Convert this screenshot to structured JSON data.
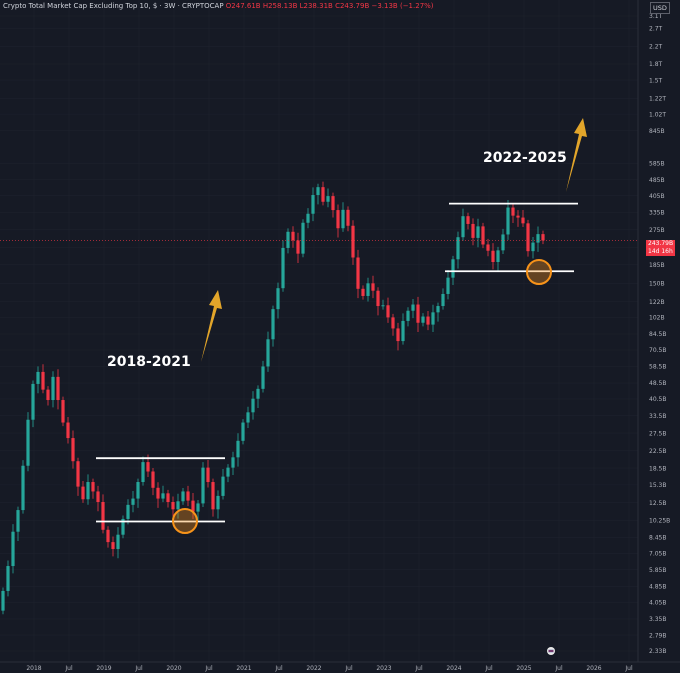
{
  "header": {
    "name": "Crypto Total Market Cap Excluding Top 10, $ · 3W · CRYPTOCAP",
    "open": "O247.61B",
    "high": "H258.13B",
    "low": "L238.31B",
    "close": "C243.79B",
    "change": "−3.13B (−1.27%)"
  },
  "currency": "USD",
  "last_price": {
    "value": "243.79B",
    "countdown": "14d 16h"
  },
  "colors": {
    "background": "#161a25",
    "up": "#26a69a",
    "down": "#f23645",
    "level": "#ffffff",
    "arrow": "#e2a52a",
    "circle": "#f7931a"
  },
  "annotations": [
    {
      "text": "2018-2021"
    },
    {
      "text": "2022-2025"
    }
  ],
  "chart_data": {
    "type": "candlestick",
    "y_scale": "log",
    "ylim": [
      "2.2B",
      "3.5T"
    ],
    "x_tick_labels": [
      "2018",
      "Jul",
      "2019",
      "Jul",
      "2020",
      "Jul",
      "2021",
      "Jul",
      "2022",
      "Jul",
      "2023",
      "Jul",
      "2024",
      "Jul",
      "2025",
      "Jul",
      "2026",
      "Jul"
    ],
    "y_tick_labels": [
      "3.1T",
      "2.7T",
      "2.2T",
      "1.8T",
      "1.5T",
      "1.22T",
      "1.02T",
      "845B",
      "585B",
      "485B",
      "405B",
      "335B",
      "275B",
      "225B",
      "185B",
      "150B",
      "122B",
      "102B",
      "84.5B",
      "70.5B",
      "58.5B",
      "48.5B",
      "40.5B",
      "33.5B",
      "27.5B",
      "22.5B",
      "18.5B",
      "15.3B",
      "12.5B",
      "10.25B",
      "8.45B",
      "7.05B",
      "5.85B",
      "4.85B",
      "4.05B",
      "3.35B",
      "2.79B",
      "2.33B"
    ],
    "levels": [
      {
        "name": "2018-2021 resistance",
        "value": 20.7
      },
      {
        "name": "2018-2021 support",
        "value": 10.1
      },
      {
        "name": "2022-2025 resistance",
        "value": 370
      },
      {
        "name": "2022-2025 support",
        "value": 172
      }
    ],
    "closes_billions": [
      4.6,
      6.1,
      9.0,
      11.5,
      19.0,
      32.0,
      48.0,
      55.0,
      45.0,
      40.0,
      52.0,
      40.0,
      31.0,
      26.0,
      20.0,
      15.0,
      13.0,
      15.8,
      14.2,
      12.6,
      9.2,
      8.0,
      7.4,
      8.7,
      10.4,
      12.2,
      13.1,
      15.8,
      19.8,
      17.8,
      14.8,
      13.1,
      13.9,
      12.6,
      11.6,
      12.7,
      14.2,
      12.8,
      11.3,
      12.4,
      18.6,
      15.8,
      11.6,
      13.5,
      16.8,
      18.6,
      20.9,
      25.2,
      31.0,
      34.8,
      40.6,
      45.4,
      58.5,
      79.6,
      112.0,
      142.0,
      224.0,
      269.0,
      244.0,
      210.0,
      298.0,
      330.0,
      408.0,
      446.0,
      378.0,
      403.0,
      344.0,
      280.0,
      345.0,
      288.0,
      201.0,
      141.0,
      130.0,
      150.0,
      138.0,
      116.0,
      117.0,
      102.0,
      90.0,
      78.0,
      98.0,
      110.0,
      118.0,
      96.0,
      103.0,
      94.0,
      108.0,
      116.0,
      133.0,
      160.0,
      197.0,
      253.0,
      321.0,
      294.0,
      251.0,
      286.0,
      233.0,
      217.0,
      191.0,
      218.0,
      261.0,
      354.0,
      323.0,
      316.0,
      296.0,
      216.0,
      238.0,
      262.0,
      243.8
    ]
  }
}
